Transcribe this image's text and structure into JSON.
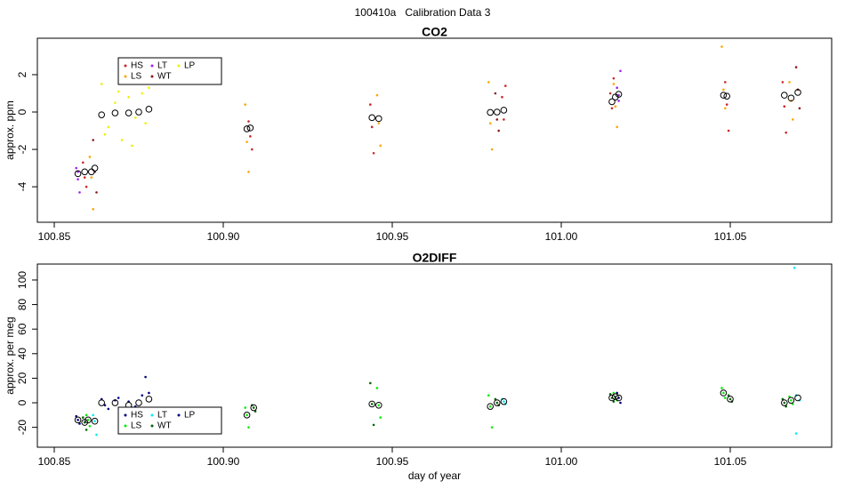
{
  "title": "100410a   Calibration Data 3",
  "chart_data": [
    {
      "type": "scatter",
      "title": "CO2",
      "ylabel": "approx. ppm",
      "xlim": [
        100.845,
        101.08
      ],
      "ylim": [
        -5.9,
        3.95
      ],
      "xticks": [
        100.85,
        {
          "value": 100.9,
          "label": "100.90"
        },
        100.95,
        {
          "value": 101,
          "label": "101.00"
        },
        101.05
      ],
      "yticks": [
        -4,
        -2,
        0,
        2
      ],
      "legend": "top-left",
      "series": [
        {
          "name": "HS",
          "color": "#cd2626",
          "x": [
            100.8585,
            100.859,
            100.8595,
            100.9075,
            100.908,
            100.9085,
            100.9435,
            100.944,
            100.9445,
            100.9825,
            100.983,
            100.9835,
            101.0145,
            101.015,
            101.0155,
            101.0485,
            101.049,
            101.0495,
            101.0655,
            101.066,
            101.0665
          ],
          "values": [
            -2.7,
            -3.5,
            -4.0,
            -0.5,
            -1.3,
            -2.0,
            0.4,
            -0.8,
            -2.2,
            0.8,
            -0.4,
            1.4,
            1.0,
            0.2,
            1.8,
            1.6,
            0.4,
            -1.0,
            1.6,
            0.3,
            -1.1
          ]
        },
        {
          "name": "LS",
          "color": "#ffa500",
          "x": [
            100.8605,
            100.861,
            100.8615,
            100.9065,
            100.907,
            100.9075,
            100.9455,
            100.946,
            100.9465,
            100.9785,
            100.979,
            100.9795,
            101.0155,
            101.016,
            101.0165,
            101.0475,
            101.048,
            101.0485,
            101.0675,
            101.068,
            101.0685
          ],
          "values": [
            -2.4,
            -3.5,
            -5.2,
            0.4,
            -1.6,
            -3.2,
            0.9,
            -0.6,
            -1.8,
            1.6,
            -0.6,
            -2.0,
            1.5,
            0.3,
            -0.8,
            3.5,
            1.2,
            0.2,
            1.6,
            0.6,
            -0.4
          ]
        },
        {
          "name": "LT",
          "color": "#a020f0",
          "x": [
            100.8565,
            100.857,
            100.8575,
            100.857,
            101.0165,
            101.017,
            101.0175,
            101.017
          ],
          "values": [
            -3.0,
            -3.6,
            -4.3,
            -3.2,
            1.3,
            0.6,
            2.2,
            0.9
          ]
        },
        {
          "name": "WT",
          "color": "#8b1a1a",
          "x": [
            100.8615,
            100.862,
            100.8625,
            100.9805,
            100.981,
            100.9815,
            101.0695,
            101.07,
            101.0705
          ],
          "values": [
            -1.5,
            -3.2,
            -4.3,
            1.0,
            -0.4,
            -1.0,
            2.4,
            1.2,
            0.2
          ]
        },
        {
          "name": "LP",
          "color": "#f0f000",
          "x": [
            100.864,
            100.866,
            100.868,
            100.87,
            100.872,
            100.874,
            100.876,
            100.878,
            100.865,
            100.869,
            100.873,
            100.877
          ],
          "values": [
            1.5,
            -0.8,
            0.5,
            -1.5,
            0.8,
            -0.3,
            1.0,
            1.3,
            -1.2,
            1.1,
            -1.8,
            -0.6
          ]
        }
      ],
      "means": {
        "x": [
          100.857,
          100.859,
          100.861,
          100.862,
          100.864,
          100.868,
          100.872,
          100.875,
          100.878,
          100.907,
          100.908,
          100.944,
          100.946,
          100.979,
          100.981,
          100.983,
          101.015,
          101.016,
          101.017,
          101.048,
          101.049,
          101.066,
          101.068,
          101.07
        ],
        "values": [
          -3.3,
          -3.2,
          -3.2,
          -3.0,
          -0.15,
          -0.05,
          -0.05,
          0,
          0.15,
          -0.9,
          -0.85,
          -0.3,
          -0.35,
          -0.02,
          0,
          0.1,
          0.55,
          0.8,
          0.95,
          0.9,
          0.85,
          0.9,
          0.75,
          1.05
        ]
      }
    },
    {
      "type": "scatter",
      "title": "O2DIFF",
      "ylabel": "approx. per meg",
      "xlabel": "day of year",
      "xlim": [
        100.845,
        101.08
      ],
      "ylim": [
        -36.2,
        113
      ],
      "xticks": [
        100.85,
        {
          "value": 100.9,
          "label": "100.90"
        },
        100.95,
        {
          "value": 101,
          "label": "101.00"
        },
        101.05
      ],
      "yticks": [
        -20,
        0,
        20,
        40,
        60,
        80,
        100
      ],
      "legend": "bottom-left",
      "series": [
        {
          "name": "HS",
          "color": "#000080",
          "x": [
            100.8565,
            100.857,
            100.8575,
            101.0165,
            101.017,
            101.0175
          ],
          "values": [
            -11,
            -14,
            -17,
            8,
            4,
            0
          ]
        },
        {
          "name": "LS",
          "color": "#00ee00",
          "x": [
            100.8595,
            100.86,
            100.8605,
            100.9065,
            100.907,
            100.9075,
            100.9455,
            100.946,
            100.9465,
            100.9785,
            100.979,
            100.9795,
            101.0155,
            101.016,
            101.0165,
            101.0475,
            101.048,
            101.0485,
            101.0675,
            101.068,
            101.0685
          ],
          "values": [
            -10,
            -14,
            -19,
            -4,
            -10,
            -20,
            12,
            -2,
            -12,
            6,
            -3,
            -20,
            8,
            5,
            2,
            12,
            8,
            4,
            5,
            2,
            -1
          ]
        },
        {
          "name": "LT",
          "color": "#00eeee",
          "x": [
            100.8615,
            100.862,
            100.8625,
            100.9825,
            100.983,
            100.9835,
            101.0695,
            101.069,
            101.0705,
            101.0695
          ],
          "values": [
            -10,
            -15,
            -26,
            3,
            1,
            -1,
            6,
            110,
            2,
            -25
          ]
        },
        {
          "name": "WT",
          "color": "#006400",
          "x": [
            100.8585,
            100.859,
            100.8595,
            100.9085,
            100.909,
            100.9095,
            100.9435,
            100.944,
            100.9445,
            100.9805,
            100.981,
            100.9815,
            101.0145,
            101.015,
            101.0155,
            101.0495,
            101.05,
            101.0505,
            101.0655,
            101.066,
            101.0665
          ],
          "values": [
            -12,
            -16,
            -22,
            -2,
            -4,
            -7,
            16,
            -1,
            -18,
            3,
            0,
            -2,
            7,
            4,
            1,
            6,
            3,
            1,
            3,
            0,
            -3
          ]
        },
        {
          "name": "LP",
          "color": "#000080",
          "x": [
            100.864,
            100.866,
            100.868,
            100.87,
            100.872,
            100.874,
            100.876,
            100.878,
            100.865,
            100.869,
            100.873,
            100.877
          ],
          "values": [
            3,
            -5,
            2,
            -7,
            1,
            -3,
            6,
            8,
            -2,
            4,
            -4,
            21
          ]
        }
      ],
      "means": {
        "x": [
          100.857,
          100.859,
          100.86,
          100.862,
          100.864,
          100.868,
          100.872,
          100.875,
          100.878,
          100.907,
          100.909,
          100.944,
          100.946,
          100.979,
          100.981,
          100.983,
          101.015,
          101.016,
          101.017,
          101.048,
          101.05,
          101.066,
          101.068,
          101.07
        ],
        "values": [
          -14,
          -16,
          -14,
          -15,
          0,
          0,
          -2,
          0,
          3,
          -10,
          -4,
          -1,
          -2,
          -3,
          0,
          1,
          4,
          5,
          4,
          8,
          3,
          0,
          2,
          4
        ]
      }
    }
  ]
}
